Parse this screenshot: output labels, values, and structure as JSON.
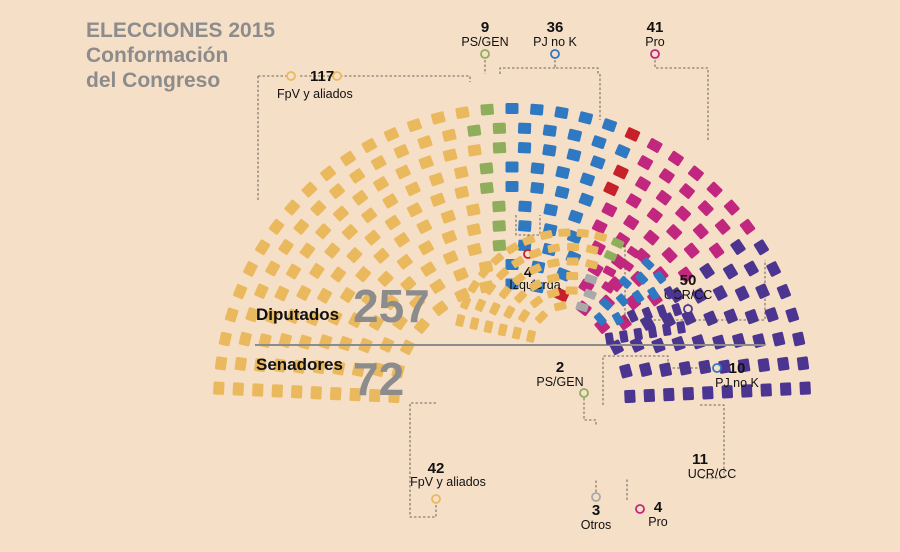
{
  "header": {
    "line1": "ELECCIONES 2015",
    "line2": "Conformación",
    "line3": "del Congreso"
  },
  "colors": {
    "FpV y aliados": "#eab95e",
    "PS/GEN": "#8fae5c",
    "PJ no K": "#2f78c2",
    "Pro": "#c1277e",
    "UCR/CC": "#4b3591",
    "Izquierda": "#c8202a",
    "Otros": "#a9a9a9"
  },
  "chart_data": [
    {
      "type": "parliament",
      "chamber": "Diputados",
      "total": "257",
      "series": [
        {
          "name": "FpV y aliados",
          "value": 117
        },
        {
          "name": "PS/GEN",
          "value": 9
        },
        {
          "name": "PJ no K",
          "value": 36
        },
        {
          "name": "Izquierda",
          "value": 4
        },
        {
          "name": "Pro",
          "value": 41
        },
        {
          "name": "UCR/CC",
          "value": 50
        }
      ]
    },
    {
      "type": "parliament",
      "chamber": "Senadores",
      "total": "72",
      "series": [
        {
          "name": "FpV y aliados",
          "value": 42
        },
        {
          "name": "Otros",
          "value": 3
        },
        {
          "name": "PS/GEN",
          "value": 2
        },
        {
          "name": "Pro",
          "value": 4
        },
        {
          "name": "PJ no K",
          "value": 10
        },
        {
          "name": "UCR/CC",
          "value": 11
        }
      ]
    }
  ]
}
